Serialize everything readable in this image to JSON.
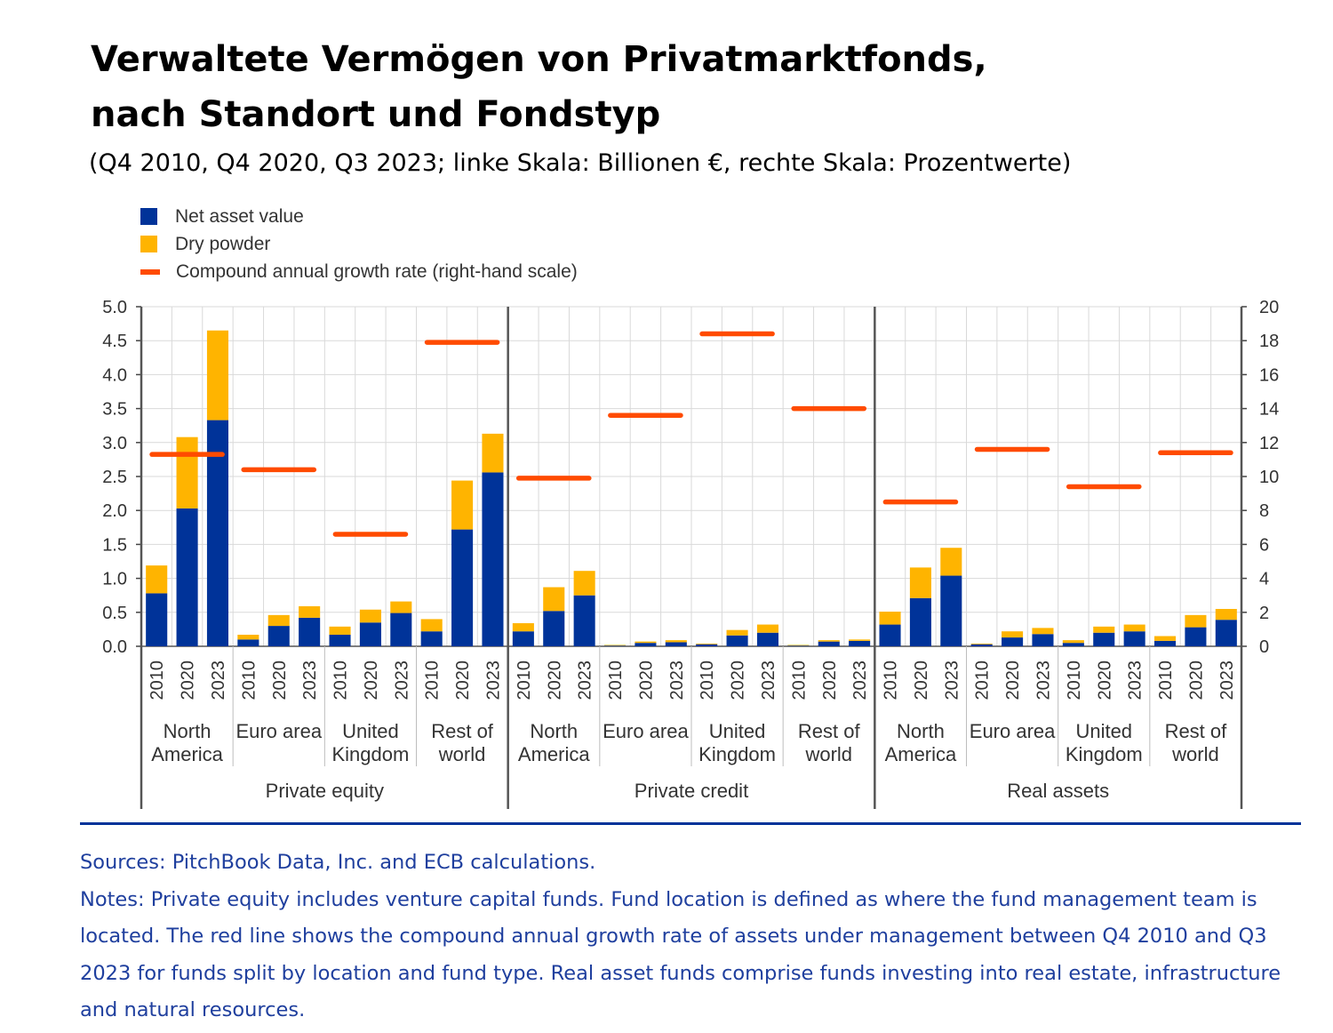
{
  "title_lines": [
    "Verwaltete Vermögen von Privatmarktfonds,",
    "nach Standort und Fondstyp"
  ],
  "subtitle": "(Q4 2010, Q4 2020, Q3 2023; linke Skala: Billionen €, rechte Skala: Prozentwerte)",
  "legend": [
    {
      "label": "Net asset value",
      "color": "#003399",
      "kind": "box"
    },
    {
      "label": "Dry powder",
      "color": "#ffb400",
      "kind": "box"
    },
    {
      "label": "Compound annual growth rate (right-hand scale)",
      "color": "#ff4b00",
      "kind": "line"
    }
  ],
  "chart_data": {
    "type": "bar",
    "stacked": true,
    "y_left": {
      "min": 0,
      "max": 5,
      "ticks": [
        "0.0",
        "0.5",
        "1.0",
        "1.5",
        "2.0",
        "2.5",
        "3.0",
        "3.5",
        "4.0",
        "4.5",
        "5.0"
      ]
    },
    "y_right": {
      "min": 0,
      "max": 20,
      "ticks": [
        "0",
        "2",
        "4",
        "6",
        "8",
        "10",
        "12",
        "14",
        "16",
        "18",
        "20"
      ]
    },
    "years": [
      "2010",
      "2020",
      "2023"
    ],
    "fund_types": [
      {
        "name": "Private equity",
        "regions": [
          {
            "lines": [
              "North",
              "America"
            ],
            "nav": [
              0.78,
              2.03,
              3.33
            ],
            "dry": [
              0.41,
              1.05,
              1.32
            ],
            "cagr": 11.3
          },
          {
            "lines": [
              "Euro area"
            ],
            "nav": [
              0.1,
              0.3,
              0.42
            ],
            "dry": [
              0.07,
              0.16,
              0.17
            ],
            "cagr": 10.4
          },
          {
            "lines": [
              "United",
              "Kingdom"
            ],
            "nav": [
              0.17,
              0.35,
              0.49
            ],
            "dry": [
              0.12,
              0.19,
              0.17
            ],
            "cagr": 6.6
          },
          {
            "lines": [
              "Rest of",
              "world"
            ],
            "nav": [
              0.22,
              1.72,
              2.56
            ],
            "dry": [
              0.18,
              0.72,
              0.57
            ],
            "cagr": 17.9
          }
        ]
      },
      {
        "name": "Private credit",
        "regions": [
          {
            "lines": [
              "North",
              "America"
            ],
            "nav": [
              0.22,
              0.52,
              0.75
            ],
            "dry": [
              0.12,
              0.35,
              0.36
            ],
            "cagr": 9.9
          },
          {
            "lines": [
              "Euro area"
            ],
            "nav": [
              0.01,
              0.05,
              0.06
            ],
            "dry": [
              0.01,
              0.02,
              0.03
            ],
            "cagr": 13.6
          },
          {
            "lines": [
              "United",
              "Kingdom"
            ],
            "nav": [
              0.03,
              0.16,
              0.2
            ],
            "dry": [
              0.01,
              0.08,
              0.12
            ],
            "cagr": 18.4
          },
          {
            "lines": [
              "Rest of",
              "world"
            ],
            "nav": [
              0.01,
              0.07,
              0.08
            ],
            "dry": [
              0.01,
              0.02,
              0.02
            ],
            "cagr": 14.0
          }
        ]
      },
      {
        "name": "Real assets",
        "regions": [
          {
            "lines": [
              "North",
              "America"
            ],
            "nav": [
              0.32,
              0.71,
              1.04
            ],
            "dry": [
              0.19,
              0.45,
              0.41
            ],
            "cagr": 8.5
          },
          {
            "lines": [
              "Euro area"
            ],
            "nav": [
              0.03,
              0.13,
              0.18
            ],
            "dry": [
              0.01,
              0.09,
              0.09
            ],
            "cagr": 11.6
          },
          {
            "lines": [
              "United",
              "Kingdom"
            ],
            "nav": [
              0.05,
              0.2,
              0.22
            ],
            "dry": [
              0.04,
              0.09,
              0.1
            ],
            "cagr": 9.4
          },
          {
            "lines": [
              "Rest of",
              "world"
            ],
            "nav": [
              0.08,
              0.28,
              0.39
            ],
            "dry": [
              0.07,
              0.18,
              0.16
            ],
            "cagr": 11.4
          }
        ]
      }
    ]
  },
  "notes": {
    "sources": "Sources: PitchBook Data, Inc. and ECB calculations.",
    "notes_text": "Notes: Private equity includes venture capital funds. Fund location is defined as where the fund management team is located. The red line shows the compound annual growth rate of assets under management between Q4 2010 and Q3 2023 for funds split by location and fund type. Real asset funds comprise funds investing into real estate, infrastructure and natural resources."
  }
}
